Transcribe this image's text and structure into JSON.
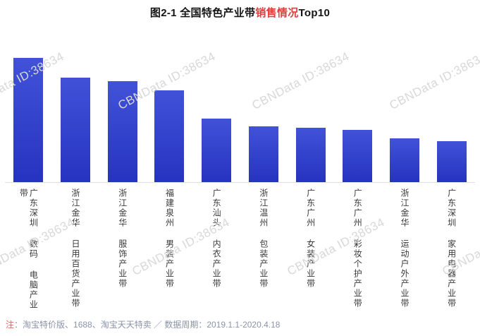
{
  "title": {
    "part1": "图2-1 全国特色产业带",
    "part2": "销售情况",
    "part3": "Top10",
    "highlight_color": "#e23d3c",
    "text_color": "#141414"
  },
  "watermark": {
    "text": "CBNData ID:38634",
    "color": "#d8d8d8"
  },
  "footer": {
    "note_mark": "注",
    "note_mark_color": "#cf6b5e",
    "text": "：淘宝特价版、1688、淘宝天天特卖 ／ 数据周期：2019.1.1-2020.4.18",
    "text_color": "#8a94a8"
  },
  "chart_data": {
    "type": "bar",
    "title": "图2-1 全国特色产业带销售情况Top10",
    "categories": [
      "广东深圳 数码 电脑产业带",
      "浙江金华 日用百货产业带",
      "浙江金华 服饰产业带",
      "福建泉州 男装产业带",
      "广东汕头 内衣产业带",
      "浙江温州 包装产业带",
      "广东广州 女装产业带",
      "广东广州 彩妆个护产业带",
      "浙江金华 运动户外产业带",
      "广东深圳 家用电器产业带"
    ],
    "values": [
      100,
      84,
      81,
      74,
      51,
      45,
      44,
      42,
      35,
      33
    ],
    "xlabel": "",
    "ylabel": "",
    "ylim": [
      0,
      100
    ],
    "grid": "off",
    "legend": "none",
    "bar_color_top": "#4152d8",
    "bar_color_bottom": "#2633c0"
  }
}
